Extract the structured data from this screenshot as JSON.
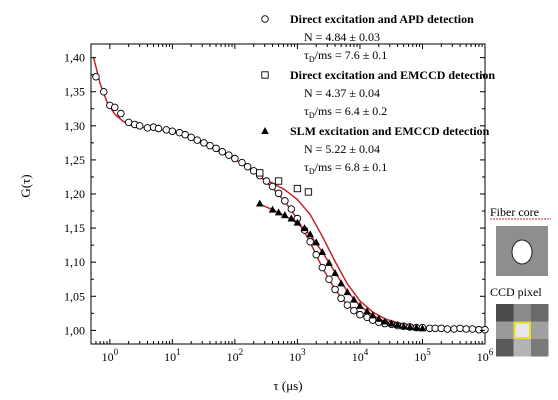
{
  "chart_data": {
    "type": "scatter",
    "title": "",
    "xlabel": "τ (μs)",
    "ylabel": "G(τ)",
    "xscale": "log",
    "xlim": [
      0.5,
      1000000
    ],
    "ylim": [
      0.98,
      1.42
    ],
    "x_ticks": [
      1,
      10,
      100,
      1000,
      10000,
      100000,
      1000000
    ],
    "x_tick_labels": [
      {
        "base": "10",
        "exp": "0"
      },
      {
        "base": "10",
        "exp": "1"
      },
      {
        "base": "10",
        "exp": "2"
      },
      {
        "base": "10",
        "exp": "3"
      },
      {
        "base": "10",
        "exp": "4"
      },
      {
        "base": "10",
        "exp": "5"
      },
      {
        "base": "10",
        "exp": "6"
      }
    ],
    "y_ticks": [
      1.0,
      1.05,
      1.1,
      1.15,
      1.2,
      1.25,
      1.3,
      1.35,
      1.4
    ],
    "y_tick_labels": [
      "1,00",
      "1,05",
      "1,10",
      "1,15",
      "1,20",
      "1,25",
      "1,30",
      "1,35",
      "1,40"
    ],
    "grid": false,
    "legend_position": "top-right",
    "fit_color": "#c0262d",
    "series": [
      {
        "id": "apd",
        "marker": "circle",
        "legend_title": "Direct excitation and APD detection",
        "params": [
          {
            "text": "N = 4.84 ± 0.03"
          },
          {
            "pre": "τ",
            "sub": "D",
            "post": "/ms = 7.6 ± 0.1"
          }
        ],
        "x": [
          0.6,
          0.8,
          1.0,
          1.2,
          1.5,
          2,
          2.5,
          3,
          4,
          5,
          6,
          8,
          10,
          13,
          16,
          20,
          25,
          32,
          40,
          50,
          63,
          80,
          100,
          130,
          160,
          200,
          250,
          320,
          400,
          500,
          630,
          800,
          1000,
          1300,
          1600,
          2000,
          2500,
          3200,
          4000,
          5000,
          6300,
          8000,
          10000,
          13000,
          16000,
          20000,
          25000,
          32000,
          40000,
          50000,
          63000,
          80000,
          100000,
          130000,
          160000,
          200000,
          250000,
          320000,
          400000,
          500000,
          630000,
          800000,
          1000000
        ],
        "y": [
          1.372,
          1.35,
          1.33,
          1.327,
          1.318,
          1.305,
          1.302,
          1.3,
          1.297,
          1.298,
          1.296,
          1.294,
          1.292,
          1.29,
          1.287,
          1.283,
          1.279,
          1.275,
          1.271,
          1.267,
          1.262,
          1.257,
          1.252,
          1.246,
          1.24,
          1.234,
          1.227,
          1.219,
          1.211,
          1.201,
          1.19,
          1.178,
          1.164,
          1.147,
          1.13,
          1.111,
          1.092,
          1.075,
          1.06,
          1.047,
          1.037,
          1.029,
          1.023,
          1.019,
          1.015,
          1.012,
          1.01,
          1.009,
          1.007,
          1.006,
          1.005,
          1.004,
          1.004,
          1.003,
          1.003,
          1.003,
          1.002,
          1.002,
          1.003,
          1.002,
          1.002,
          1.001,
          1.001
        ]
      },
      {
        "id": "emccd-direct",
        "marker": "square",
        "legend_title": "Direct excitation and EMCCD detection",
        "params": [
          {
            "text": "N = 4.37 ± 0.04"
          },
          {
            "pre": "τ",
            "sub": "D",
            "post": "/ms = 6.4 ± 0.2"
          }
        ],
        "x": [
          250,
          500,
          1000,
          1500
        ],
        "y": [
          1.231,
          1.219,
          1.208,
          1.203
        ]
      },
      {
        "id": "slm",
        "marker": "triangle",
        "legend_title": "SLM excitation and EMCCD detection",
        "params": [
          {
            "text": "N = 5.22 ± 0.04"
          },
          {
            "pre": "τ",
            "sub": "D",
            "post": "/ms = 6.8 ± 0.1"
          }
        ],
        "x": [
          250,
          400,
          500,
          630,
          800,
          1000,
          1300,
          1600,
          2000,
          2500,
          3200,
          4000,
          5000,
          6300,
          8000,
          10000,
          13000,
          16000,
          20000,
          25000,
          32000,
          40000,
          50000,
          63000,
          80000,
          100000
        ],
        "y": [
          1.186,
          1.177,
          1.173,
          1.169,
          1.164,
          1.158,
          1.15,
          1.141,
          1.129,
          1.115,
          1.099,
          1.084,
          1.069,
          1.056,
          1.045,
          1.036,
          1.028,
          1.022,
          1.017,
          1.013,
          1.01,
          1.008,
          1.006,
          1.005,
          1.004,
          1.003
        ]
      }
    ],
    "fits": [
      {
        "series": "apd",
        "x": [
          0.55,
          0.7,
          0.9,
          1.2,
          1.6,
          2,
          3,
          4,
          6,
          10,
          15,
          25,
          40,
          60,
          100,
          160,
          250,
          400,
          630,
          1000,
          1600,
          2500,
          4000,
          6300,
          10000,
          16000,
          25000,
          40000,
          63000,
          100000,
          250000,
          1000000
        ],
        "y": [
          1.4,
          1.362,
          1.335,
          1.317,
          1.307,
          1.302,
          1.298,
          1.297,
          1.295,
          1.291,
          1.286,
          1.277,
          1.269,
          1.261,
          1.251,
          1.239,
          1.226,
          1.209,
          1.189,
          1.163,
          1.129,
          1.092,
          1.06,
          1.037,
          1.023,
          1.015,
          1.01,
          1.007,
          1.005,
          1.004,
          1.002,
          1.001
        ]
      },
      {
        "series": "emccd-direct",
        "x": [
          250,
          400,
          630,
          1000,
          1600,
          2500,
          4000,
          6300,
          10000,
          16000,
          25000,
          40000,
          100000
        ],
        "y": [
          1.225,
          1.216,
          1.206,
          1.192,
          1.17,
          1.138,
          1.101,
          1.068,
          1.043,
          1.027,
          1.017,
          1.011,
          1.005
        ]
      },
      {
        "series": "slm",
        "x": [
          250,
          400,
          630,
          1000,
          1600,
          2500,
          4000,
          6300,
          10000,
          16000,
          25000,
          40000,
          100000
        ],
        "y": [
          1.185,
          1.177,
          1.168,
          1.157,
          1.14,
          1.115,
          1.085,
          1.057,
          1.036,
          1.022,
          1.013,
          1.008,
          1.003
        ]
      }
    ]
  },
  "insets": {
    "fiber_core": {
      "label": "Fiber core"
    },
    "ccd_pixel": {
      "label": "CCD pixel",
      "grid": [
        [
          "#4a4a4a",
          "#8a8a8a",
          "#6a6a6a"
        ],
        [
          "#9a9a9a",
          "#e8e8e8",
          "#a0a0a0"
        ],
        [
          "#5a5a5a",
          "#b4b4b4",
          "#7a7a7a"
        ]
      ],
      "highlight_color": "#e6e020"
    }
  }
}
